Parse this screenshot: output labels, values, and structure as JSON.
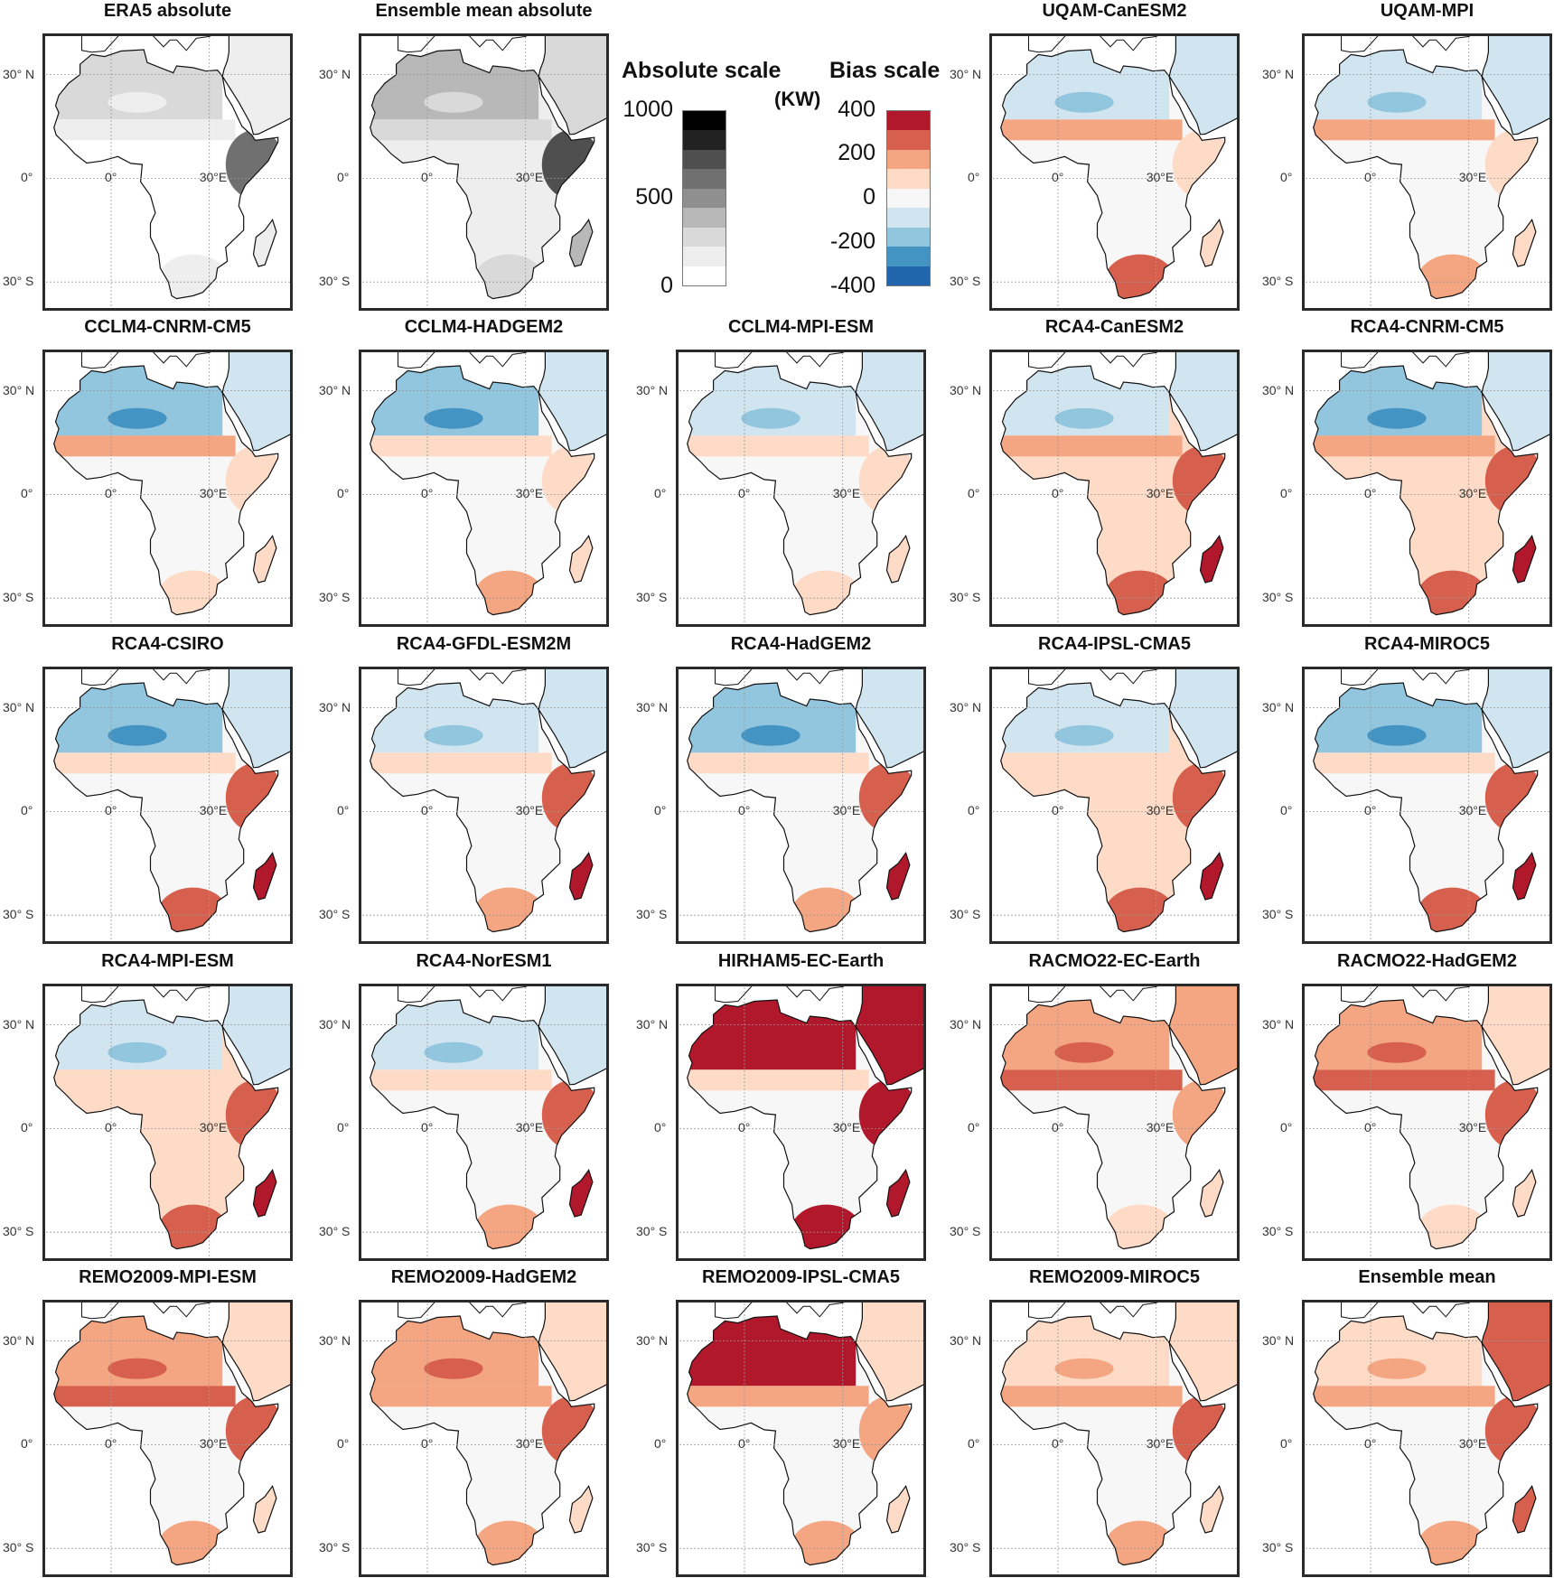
{
  "map_labels": {
    "lat_north": "30° N",
    "lat_equator": "0°",
    "lat_south": "30° S",
    "lon_zero": "0°",
    "lon_east": "30°E"
  },
  "colorbars": {
    "absolute": {
      "title": "Absolute scale",
      "ticks": [
        "1000",
        "500",
        "0"
      ],
      "colors": [
        "#ffffff",
        "#eeeeee",
        "#d9d9d9",
        "#b8b8b8",
        "#8f8f8f",
        "#707070",
        "#4f4f4f",
        "#222222",
        "#000000"
      ]
    },
    "bias": {
      "title": "Bias scale",
      "unit": "(KW)",
      "ticks": [
        "400",
        "200",
        "0",
        "-200",
        "-400"
      ],
      "colors": [
        "#2166ac",
        "#4393c3",
        "#92c5de",
        "#d1e5f0",
        "#f7f7f7",
        "#fddbc7",
        "#f4a582",
        "#d6604d",
        "#b2182b"
      ]
    }
  },
  "panels": [
    {
      "title": "ERA5 absolute",
      "scale": "absolute",
      "levels": {
        "interior": 0,
        "north": 2,
        "sahel": 1,
        "east": 5,
        "south": 1,
        "arabia": 1,
        "madagascar": 1
      }
    },
    {
      "title": "Ensemble mean absolute",
      "scale": "absolute",
      "levels": {
        "interior": 1,
        "north": 3,
        "sahel": 2,
        "east": 6,
        "south": 2,
        "arabia": 2,
        "madagascar": 3
      }
    },
    {
      "title": "UQAM-CanESM2",
      "scale": "bias",
      "levels": {
        "interior": 4,
        "north": 3,
        "sahel": 6,
        "east": 5,
        "south": 7,
        "arabia": 3,
        "madagascar": 5
      }
    },
    {
      "title": "UQAM-MPI",
      "scale": "bias",
      "levels": {
        "interior": 4,
        "north": 3,
        "sahel": 6,
        "east": 5,
        "south": 6,
        "arabia": 3,
        "madagascar": 5
      }
    },
    {
      "title": "CCLM4-CNRM-CM5",
      "scale": "bias",
      "levels": {
        "interior": 4,
        "north": 2,
        "sahel": 6,
        "east": 5,
        "south": 5,
        "arabia": 3,
        "madagascar": 5
      }
    },
    {
      "title": "CCLM4-HADGEM2",
      "scale": "bias",
      "levels": {
        "interior": 4,
        "north": 2,
        "sahel": 5,
        "east": 5,
        "south": 6,
        "arabia": 3,
        "madagascar": 5
      }
    },
    {
      "title": "CCLM4-MPI-ESM",
      "scale": "bias",
      "levels": {
        "interior": 4,
        "north": 3,
        "sahel": 5,
        "east": 5,
        "south": 5,
        "arabia": 3,
        "madagascar": 5
      }
    },
    {
      "title": "RCA4-CanESM2",
      "scale": "bias",
      "levels": {
        "interior": 5,
        "north": 3,
        "sahel": 6,
        "east": 7,
        "south": 7,
        "arabia": 3,
        "madagascar": 8
      }
    },
    {
      "title": "RCA4-CNRM-CM5",
      "scale": "bias",
      "levels": {
        "interior": 5,
        "north": 2,
        "sahel": 6,
        "east": 7,
        "south": 7,
        "arabia": 3,
        "madagascar": 8
      }
    },
    {
      "title": "RCA4-CSIRO",
      "scale": "bias",
      "levels": {
        "interior": 4,
        "north": 2,
        "sahel": 5,
        "east": 7,
        "south": 7,
        "arabia": 3,
        "madagascar": 8
      }
    },
    {
      "title": "RCA4-GFDL-ESM2M",
      "scale": "bias",
      "levels": {
        "interior": 4,
        "north": 3,
        "sahel": 5,
        "east": 7,
        "south": 6,
        "arabia": 3,
        "madagascar": 8
      }
    },
    {
      "title": "RCA4-HadGEM2",
      "scale": "bias",
      "levels": {
        "interior": 4,
        "north": 2,
        "sahel": 5,
        "east": 7,
        "south": 6,
        "arabia": 3,
        "madagascar": 8
      }
    },
    {
      "title": "RCA4-IPSL-CMA5",
      "scale": "bias",
      "levels": {
        "interior": 5,
        "north": 3,
        "sahel": 5,
        "east": 7,
        "south": 7,
        "arabia": 3,
        "madagascar": 8
      }
    },
    {
      "title": "RCA4-MIROC5",
      "scale": "bias",
      "levels": {
        "interior": 4,
        "north": 2,
        "sahel": 5,
        "east": 7,
        "south": 7,
        "arabia": 3,
        "madagascar": 8
      }
    },
    {
      "title": "RCA4-MPI-ESM",
      "scale": "bias",
      "levels": {
        "interior": 5,
        "north": 3,
        "sahel": 5,
        "east": 7,
        "south": 7,
        "arabia": 3,
        "madagascar": 8
      }
    },
    {
      "title": "RCA4-NorESM1",
      "scale": "bias",
      "levels": {
        "interior": 4,
        "north": 3,
        "sahel": 5,
        "east": 7,
        "south": 6,
        "arabia": 3,
        "madagascar": 8
      }
    },
    {
      "title": "HIRHAM5-EC-Earth",
      "scale": "bias",
      "levels": {
        "interior": 4,
        "north": 8,
        "sahel": 5,
        "east": 8,
        "south": 8,
        "arabia": 8,
        "madagascar": 8
      }
    },
    {
      "title": "RACMO22-EC-Earth",
      "scale": "bias",
      "levels": {
        "interior": 4,
        "north": 6,
        "sahel": 7,
        "east": 6,
        "south": 5,
        "arabia": 6,
        "madagascar": 5
      }
    },
    {
      "title": "RACMO22-HadGEM2",
      "scale": "bias",
      "levels": {
        "interior": 4,
        "north": 6,
        "sahel": 7,
        "east": 7,
        "south": 5,
        "arabia": 5,
        "madagascar": 5
      }
    },
    {
      "title": "REMO2009-MPI-ESM",
      "scale": "bias",
      "levels": {
        "interior": 4,
        "north": 6,
        "sahel": 7,
        "east": 7,
        "south": 6,
        "arabia": 5,
        "madagascar": 5
      }
    },
    {
      "title": "REMO2009-HadGEM2",
      "scale": "bias",
      "levels": {
        "interior": 4,
        "north": 6,
        "sahel": 6,
        "east": 7,
        "south": 6,
        "arabia": 5,
        "madagascar": 5
      }
    },
    {
      "title": "REMO2009-IPSL-CMA5",
      "scale": "bias",
      "levels": {
        "interior": 4,
        "north": 8,
        "sahel": 6,
        "east": 6,
        "south": 6,
        "arabia": 5,
        "madagascar": 5
      }
    },
    {
      "title": "REMO2009-MIROC5",
      "scale": "bias",
      "levels": {
        "interior": 4,
        "north": 5,
        "sahel": 6,
        "east": 7,
        "south": 6,
        "arabia": 5,
        "madagascar": 5
      }
    },
    {
      "title": "Ensemble mean",
      "scale": "bias",
      "levels": {
        "interior": 4,
        "north": 5,
        "sahel": 6,
        "east": 7,
        "south": 6,
        "arabia": 7,
        "madagascar": 7
      }
    }
  ]
}
